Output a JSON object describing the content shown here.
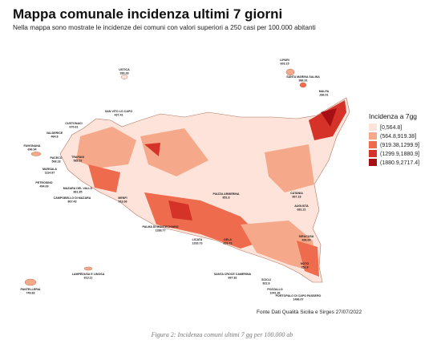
{
  "header": {
    "title": "Mappa comunale incidenza ultimi 7 giorni",
    "subtitle": "Nella mappa sono mostrate le incidenze dei comuni con valori superiori a 250 casi per 100.000 abitanti"
  },
  "legend": {
    "title": "Incidenza a 7gg",
    "items": [
      {
        "label": "[0,564.8]",
        "color": "#fde3d9"
      },
      {
        "label": "(564.8,919.38]",
        "color": "#f5a98a"
      },
      {
        "label": "(919.38,1299.9]",
        "color": "#ee6b4d"
      },
      {
        "label": "(1299.9,1880.9]",
        "color": "#d63328"
      },
      {
        "label": "(1880.9,2717.4]",
        "color": "#a50f15"
      }
    ]
  },
  "labels": [
    {
      "name": "USTICA",
      "value": 390.28
    },
    {
      "name": "LIPARI",
      "value": 603.15
    },
    {
      "name": "SANTA MARINA SALINA",
      "value": 986.91
    },
    {
      "name": "MALFA",
      "value": 286.01
    },
    {
      "name": "SAN VITO LO CAPO",
      "value": 437.41
    },
    {
      "name": "CUSTONACI",
      "value": 670.61
    },
    {
      "name": "VALDERICE",
      "value": 464.8
    },
    {
      "name": "FAVIGNANA",
      "value": 696.94
    },
    {
      "name": "PACECO",
      "value": 568.18
    },
    {
      "name": "TRAPANI",
      "value": 582.52
    },
    {
      "name": "MARSALA",
      "value": 1114.87
    },
    {
      "name": "PETROSINO",
      "value": 494.69
    },
    {
      "name": "MAZARA DEL VALLO",
      "value": 861.85
    },
    {
      "name": "CAMPOBELLO DI MAZARA",
      "value": 867.43
    },
    {
      "name": "MENFI",
      "value": 919.36
    },
    {
      "name": "CATANIA",
      "value": 867.18
    },
    {
      "name": "AUGUSTA",
      "value": 681.21
    },
    {
      "name": "SIRACUSA",
      "value": 696.04
    },
    {
      "name": "PALMA DI MONTECHIARO",
      "value": 1288.77
    },
    {
      "name": "LICATA",
      "value": 1333.73
    },
    {
      "name": "GELA",
      "value": 826.73
    },
    {
      "name": "PIAZZA ARMERINA",
      "value": 851.8
    },
    {
      "name": "SANTA CROCE CAMERINA",
      "value": 667.82
    },
    {
      "name": "SCICLI",
      "value": 822.8
    },
    {
      "name": "POZZALLO",
      "value": 1041.36
    },
    {
      "name": "PORTOPALO DI CAPO PASSERO",
      "value": 1486.07
    },
    {
      "name": "NOTO",
      "value": 752.8
    },
    {
      "name": "LAMPEDUSA E LINOSA",
      "value": 613.11
    },
    {
      "name": "PANTELLERIA",
      "value": 749.83
    }
  ],
  "source": "Fonte Dati Qualità Sicilia e Sirges 27/07/2022",
  "caption": "Figura 2: Incidenza comuni ultimi 7 gg per 100.000 ab"
}
